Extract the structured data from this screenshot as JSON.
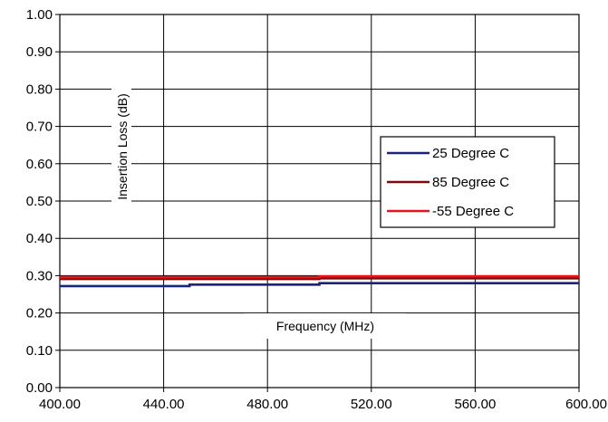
{
  "chart_data": {
    "type": "line",
    "xlabel": "Frequency (MHz)",
    "ylabel": "Insertion Loss (dB)",
    "xlim": [
      400,
      600
    ],
    "ylim": [
      0,
      1
    ],
    "x_ticks": [
      "400.00",
      "440.00",
      "480.00",
      "520.00",
      "560.00",
      "600.00"
    ],
    "y_ticks": [
      "0.00",
      "0.10",
      "0.20",
      "0.30",
      "0.40",
      "0.50",
      "0.60",
      "0.70",
      "0.80",
      "0.90",
      "1.00"
    ],
    "grid": true,
    "legend_position": "right",
    "series": [
      {
        "name": "25 Degree C",
        "color": "#1a237e",
        "x": [
          400,
          450,
          450,
          500,
          500,
          600
        ],
        "y": [
          0.272,
          0.272,
          0.276,
          0.276,
          0.28,
          0.28
        ]
      },
      {
        "name": "85 Degree C",
        "color": "#7b0a0a",
        "x": [
          400,
          500,
          500,
          600
        ],
        "y": [
          0.291,
          0.291,
          0.293,
          0.293
        ]
      },
      {
        "name": "-55 Degree C",
        "color": "#e8141c",
        "x": [
          400,
          500,
          500,
          600
        ],
        "y": [
          0.296,
          0.296,
          0.298,
          0.298
        ]
      }
    ]
  }
}
